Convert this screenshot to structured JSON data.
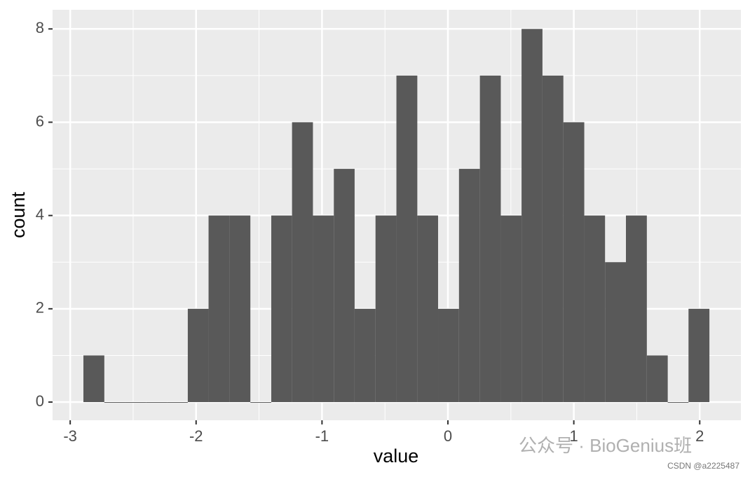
{
  "chart_data": {
    "type": "histogram",
    "x_label": "value",
    "y_label": "count",
    "bins": [
      -2.895,
      -2.729,
      -2.564,
      -2.398,
      -2.232,
      -2.066,
      -1.901,
      -1.735,
      -1.569,
      -1.403,
      -1.238,
      -1.072,
      -0.906,
      -0.741,
      -0.575,
      -0.409,
      -0.243,
      -0.078,
      0.088,
      0.254,
      0.42,
      0.585,
      0.751,
      0.917,
      1.083,
      1.248,
      1.414,
      1.58,
      1.746,
      1.911,
      2.077
    ],
    "values": [
      1,
      0,
      0,
      0,
      0,
      2,
      4,
      4,
      0,
      4,
      6,
      4,
      5,
      2,
      4,
      7,
      4,
      2,
      5,
      7,
      4,
      8,
      7,
      6,
      4,
      3,
      4,
      1,
      0,
      2
    ],
    "color": "#595959",
    "xlim": [
      -3.14,
      2.327
    ],
    "ylim": [
      -0.39,
      8.41
    ],
    "xticks": [
      -3,
      -2,
      -1,
      0,
      1,
      2
    ],
    "yticks": [
      0,
      2,
      4,
      6,
      8
    ],
    "grid": true,
    "watermark": "公众号 · BioGenius班",
    "credit": "CSDN @a2225487"
  }
}
